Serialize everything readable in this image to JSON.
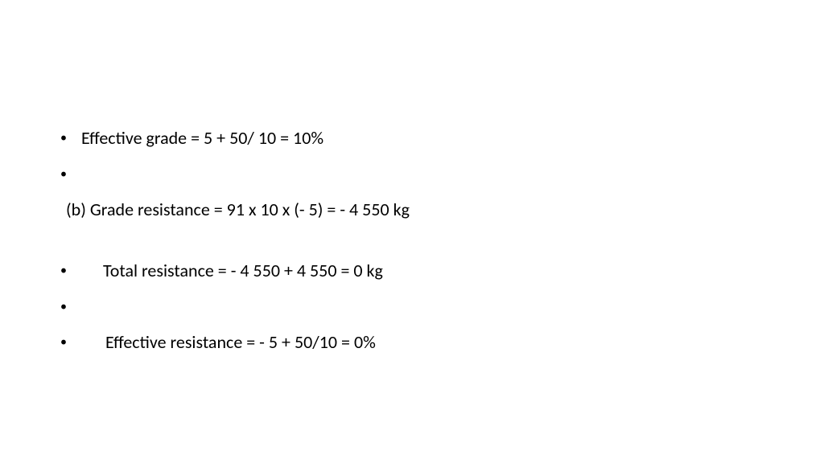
{
  "lines": {
    "effective_grade": "Effective grade =  5  +  50/ 10 = 10%",
    "grade_resistance": "(b) Grade resistance =  91 x 10 x (- 5)   =  - 4 550 kg",
    "total_resistance": "Total resistance  =  - 4 550 + 4 550  =  0 kg",
    "effective_resistance": "Effective resistance  =  - 5 + 50/10  = 0%"
  },
  "style": {
    "background_color": "#ffffff",
    "text_color": "#000000",
    "font_family": "Calibri, Arial, sans-serif",
    "font_size_pt": 16,
    "bullet_char": "•"
  }
}
